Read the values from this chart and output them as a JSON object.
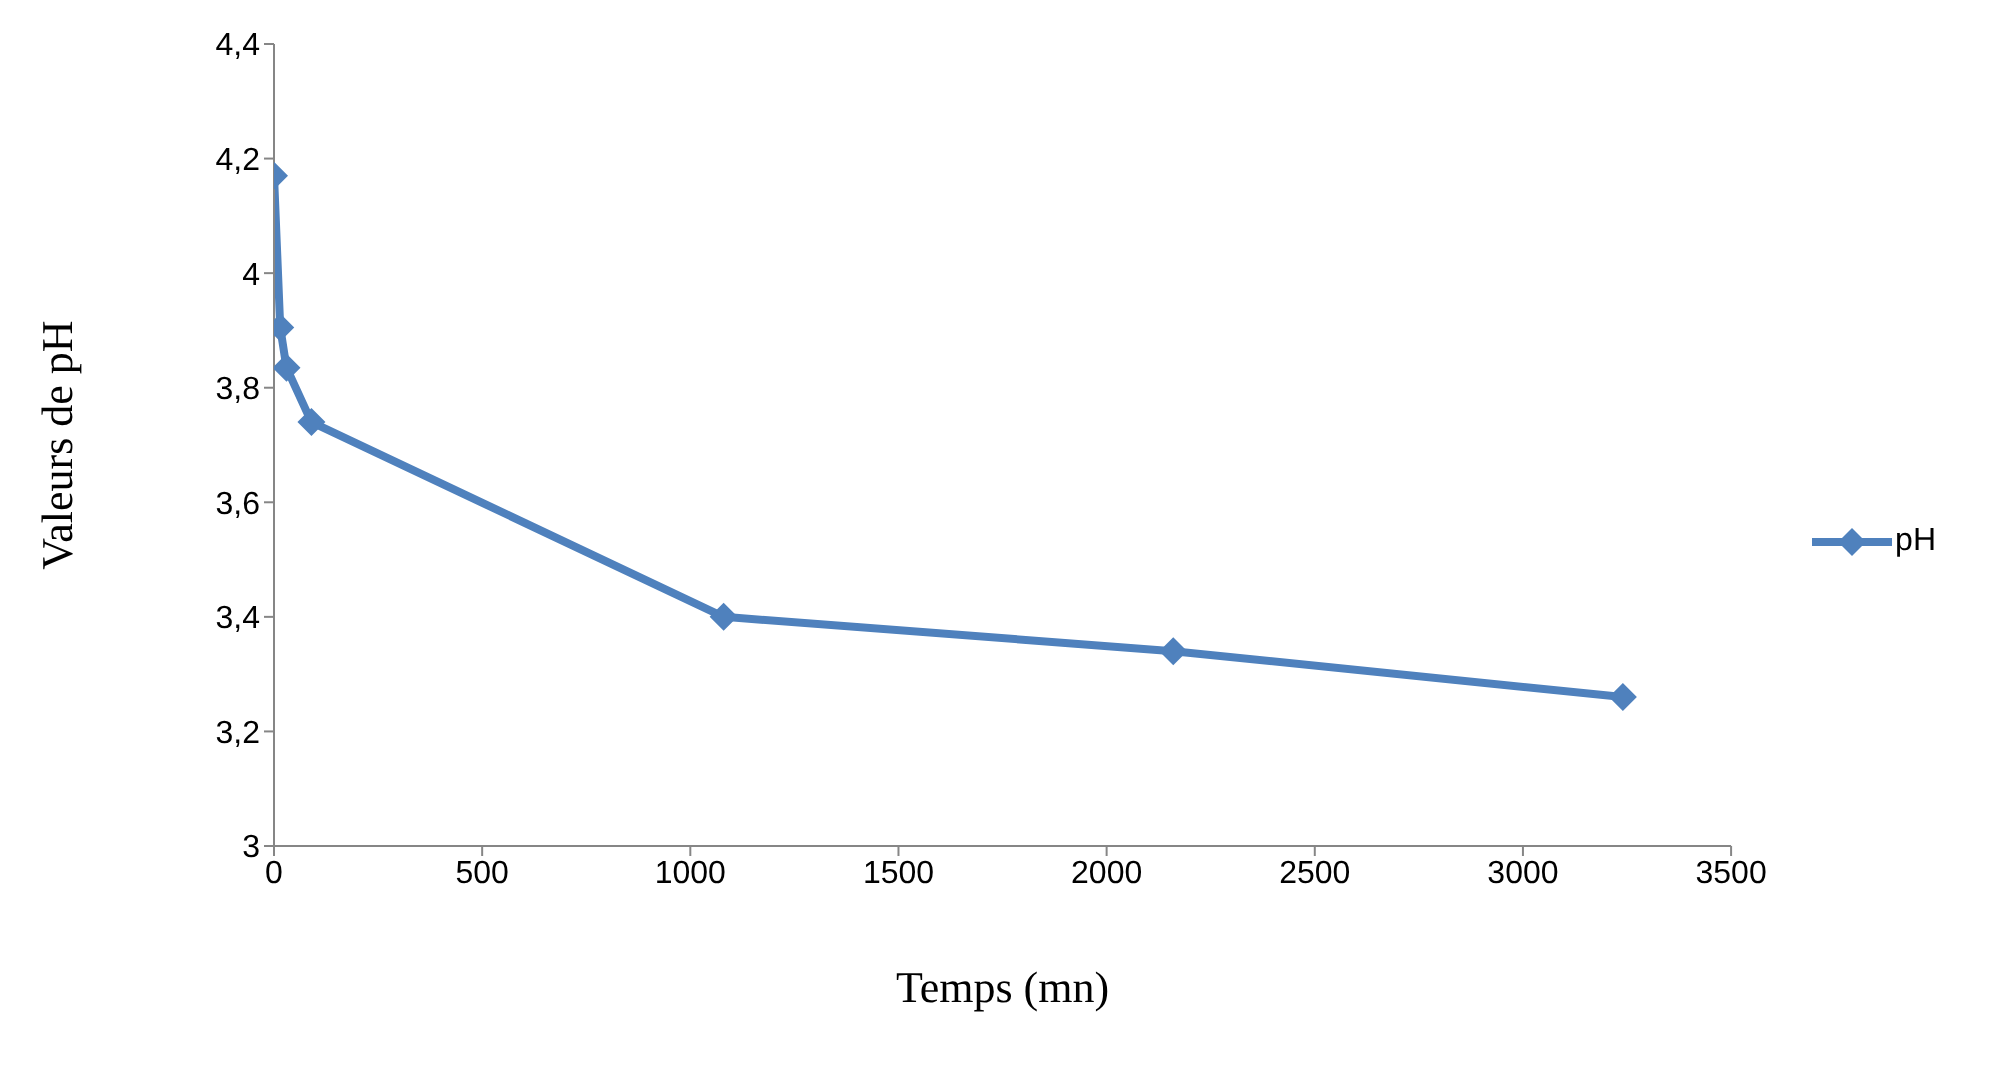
{
  "chart_data": {
    "type": "line",
    "xlabel": "Temps (mn)",
    "ylabel": "Valeurs de pH",
    "x": [
      0,
      15,
      30,
      90,
      1080,
      2160,
      3240
    ],
    "series": [
      {
        "name": "pH",
        "color": "#4f81bd",
        "values": [
          4.17,
          3.905,
          3.835,
          3.74,
          3.4,
          3.34,
          3.26
        ]
      }
    ],
    "xlim": [
      0,
      3500
    ],
    "xticks": [
      0,
      500,
      1000,
      1500,
      2000,
      2500,
      3000,
      3500
    ],
    "ylim": [
      3,
      4.4
    ],
    "yticks": [
      {
        "value": 3,
        "label": "3"
      },
      {
        "value": 3.2,
        "label": "3,2"
      },
      {
        "value": 3.4,
        "label": "3,4"
      },
      {
        "value": 3.6,
        "label": "3,6"
      },
      {
        "value": 3.8,
        "label": "3,8"
      },
      {
        "value": 4,
        "label": "4"
      },
      {
        "value": 4.2,
        "label": "4,2"
      },
      {
        "value": 4.4,
        "label": "4,4"
      }
    ],
    "grid": false,
    "legend": "right",
    "marker": "diamond",
    "line_style": "solid"
  }
}
